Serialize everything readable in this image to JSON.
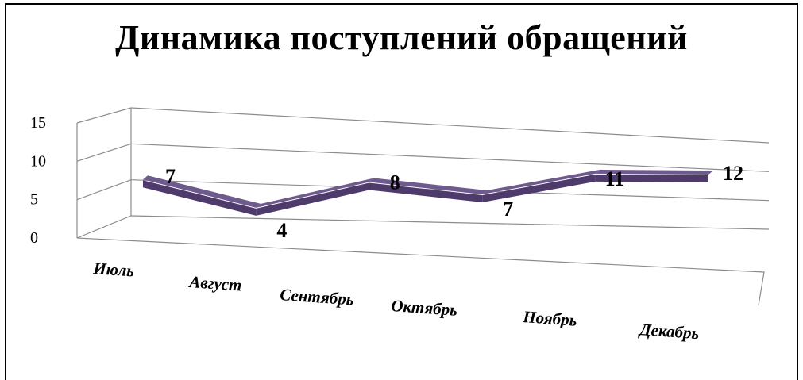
{
  "chart_data": {
    "type": "line",
    "style": "3d-ribbon",
    "title": "Динамика поступлений обращений",
    "categories": [
      "Июль",
      "Август",
      "Сентябрь",
      "Октябрь",
      "Ноябрь",
      "Декабрь"
    ],
    "series": [
      {
        "values": [
          7,
          4,
          8,
          7,
          11,
          12
        ]
      }
    ],
    "ylim": [
      0,
      15
    ],
    "yticks": [
      "0",
      "5",
      "10",
      "15"
    ],
    "data_labels": [
      "7",
      "4",
      "8",
      "7",
      "11",
      "12"
    ],
    "grid": true,
    "legend": "none",
    "colors": {
      "ribbon_top": "#6f5a8e",
      "ribbon_front": "#4e3b6b",
      "grid": "#8c8c8c"
    }
  }
}
